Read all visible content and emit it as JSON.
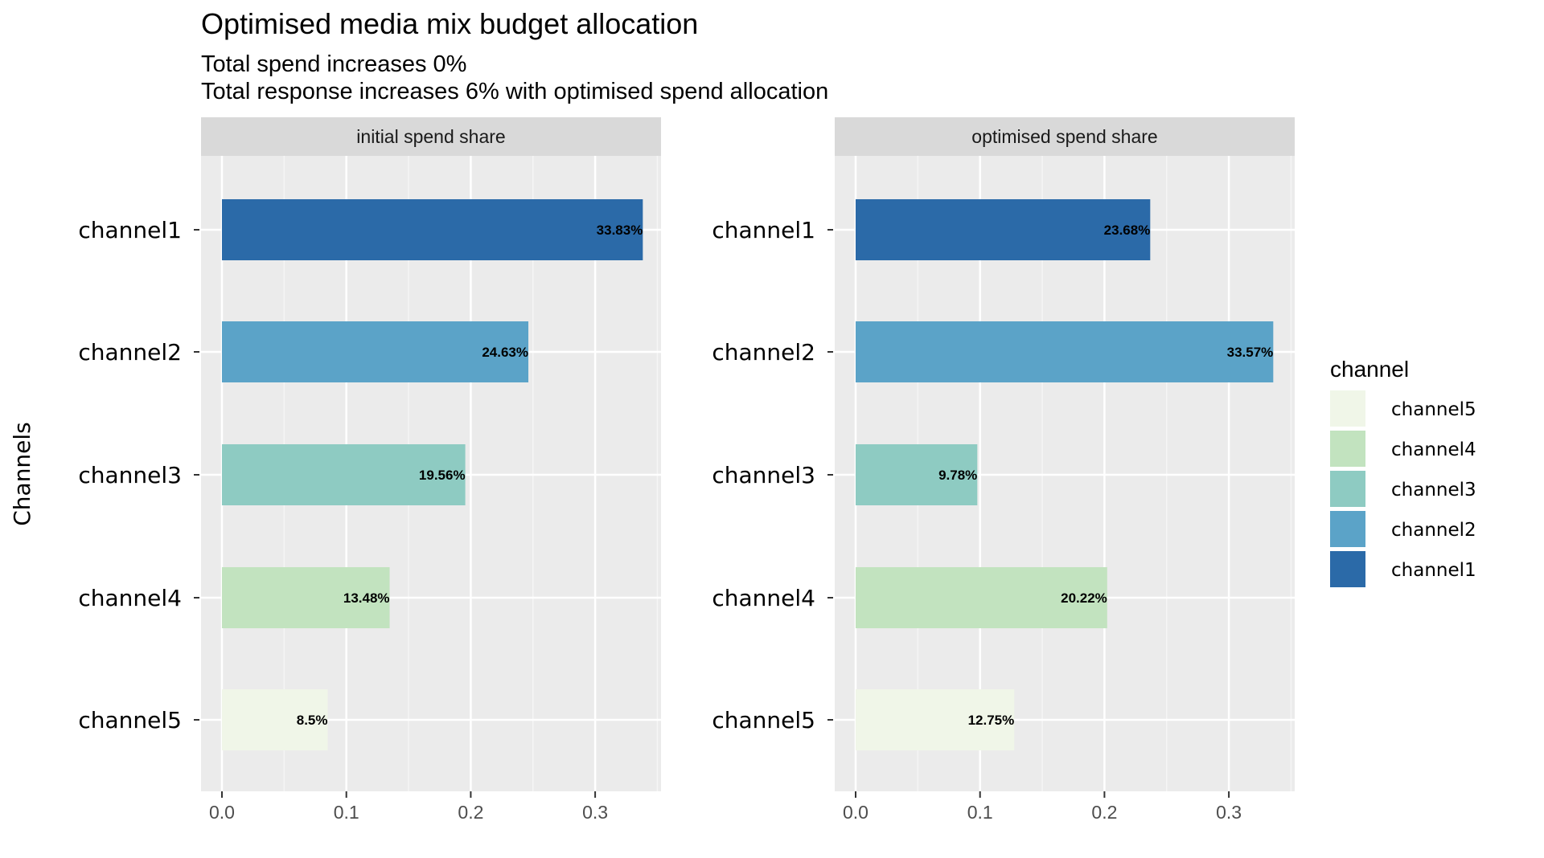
{
  "chart_data": {
    "type": "bar",
    "orientation": "horizontal",
    "title": "Optimised media mix budget allocation",
    "subtitle_lines": [
      "Total spend increases 0%",
      "Total response increases 6% with optimised spend allocation"
    ],
    "ylabel": "Channels",
    "xlabel": "",
    "xlim": [
      0,
      0.35
    ],
    "xticks": [
      "0.0",
      "0.1",
      "0.2",
      "0.3"
    ],
    "categories": [
      "channel1",
      "channel2",
      "channel3",
      "channel4",
      "channel5"
    ],
    "colors": {
      "channel1": "#2b6aa8",
      "channel2": "#5ba3c8",
      "channel3": "#8ecbc2",
      "channel4": "#c2e3bf",
      "channel5": "#f0f6e8"
    },
    "panel_background": "#ebebeb",
    "strip_background": "#d9d9d9",
    "grid": true,
    "panels": [
      {
        "name": "initial spend share",
        "values": [
          0.3383,
          0.2463,
          0.1956,
          0.1348,
          0.085
        ],
        "labels": [
          "33.83%",
          "24.63%",
          "19.56%",
          "13.48%",
          "8.5%"
        ]
      },
      {
        "name": "optimised spend share",
        "values": [
          0.2368,
          0.3357,
          0.0978,
          0.2022,
          0.1275
        ],
        "labels": [
          "23.68%",
          "33.57%",
          "9.78%",
          "20.22%",
          "12.75%"
        ]
      }
    ],
    "legend": {
      "title": "channel",
      "position": "right",
      "items": [
        "channel5",
        "channel4",
        "channel3",
        "channel2",
        "channel1"
      ]
    }
  }
}
